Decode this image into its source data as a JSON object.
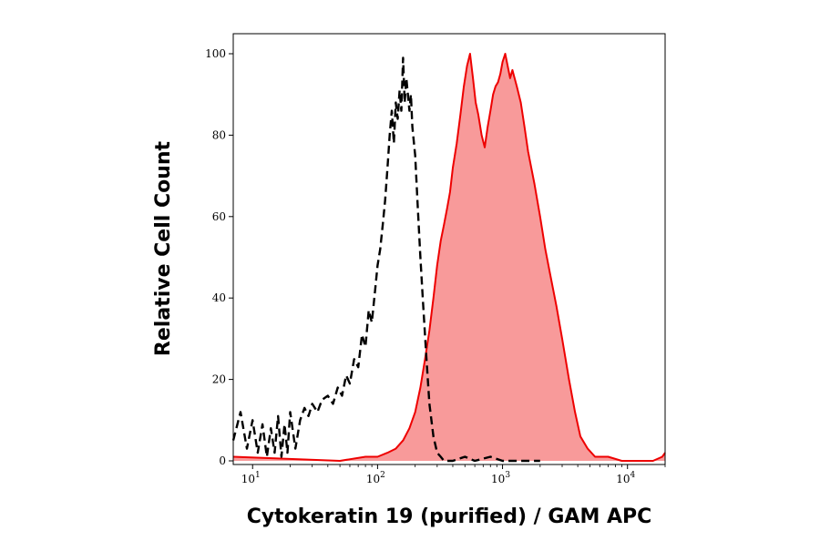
{
  "chart_data": {
    "type": "area",
    "xlabel": "Cytokeratin 19 (purified) / GAM APC",
    "ylabel": "Relative Cell Count",
    "x_scale": "log",
    "xlim": [
      7,
      20000
    ],
    "ylim": [
      0,
      100
    ],
    "y_ticks": [
      0,
      20,
      40,
      60,
      80,
      100
    ],
    "y_tick_labels": [
      "0",
      "20",
      "40",
      "60",
      "80",
      "100"
    ],
    "x_ticks": [
      {
        "value": 10,
        "base": "10",
        "exp": "1"
      },
      {
        "value": 100,
        "base": "10",
        "exp": "2"
      },
      {
        "value": 1000,
        "base": "10",
        "exp": "3"
      },
      {
        "value": 10000,
        "base": "10",
        "exp": "4"
      },
      {
        "value": 100000,
        "base": "10",
        "exp": "5"
      }
    ],
    "series": [
      {
        "style": "dashed",
        "color": "#000000",
        "fill": "none",
        "points": [
          [
            7,
            5
          ],
          [
            8,
            12
          ],
          [
            9,
            3
          ],
          [
            10,
            10
          ],
          [
            11,
            2
          ],
          [
            12,
            9
          ],
          [
            13,
            1
          ],
          [
            14,
            8
          ],
          [
            15,
            2
          ],
          [
            16,
            11
          ],
          [
            17,
            1
          ],
          [
            18,
            9
          ],
          [
            19,
            2
          ],
          [
            20,
            12
          ],
          [
            22,
            3
          ],
          [
            24,
            10
          ],
          [
            26,
            13
          ],
          [
            28,
            11
          ],
          [
            30,
            14
          ],
          [
            33,
            12
          ],
          [
            36,
            15
          ],
          [
            40,
            16
          ],
          [
            44,
            14
          ],
          [
            48,
            18
          ],
          [
            52,
            16
          ],
          [
            56,
            21
          ],
          [
            60,
            19
          ],
          [
            65,
            25
          ],
          [
            70,
            23
          ],
          [
            75,
            31
          ],
          [
            80,
            28
          ],
          [
            85,
            37
          ],
          [
            90,
            34
          ],
          [
            95,
            41
          ],
          [
            100,
            48
          ],
          [
            105,
            52
          ],
          [
            110,
            58
          ],
          [
            115,
            64
          ],
          [
            120,
            72
          ],
          [
            125,
            80
          ],
          [
            130,
            86
          ],
          [
            135,
            78
          ],
          [
            140,
            88
          ],
          [
            145,
            84
          ],
          [
            150,
            91
          ],
          [
            155,
            86
          ],
          [
            160,
            99
          ],
          [
            165,
            88
          ],
          [
            170,
            94
          ],
          [
            175,
            90
          ],
          [
            180,
            86
          ],
          [
            185,
            90
          ],
          [
            190,
            82
          ],
          [
            200,
            75
          ],
          [
            210,
            62
          ],
          [
            220,
            50
          ],
          [
            230,
            40
          ],
          [
            245,
            26
          ],
          [
            260,
            14
          ],
          [
            280,
            6
          ],
          [
            300,
            2
          ],
          [
            320,
            1
          ],
          [
            340,
            0
          ],
          [
            400,
            0
          ],
          [
            500,
            1
          ],
          [
            600,
            0
          ],
          [
            800,
            1
          ],
          [
            1000,
            0
          ],
          [
            1500,
            0
          ],
          [
            2000,
            0
          ]
        ]
      },
      {
        "style": "solid",
        "color": "#ee0000",
        "fill": "#f89a9a",
        "points": [
          [
            7,
            1
          ],
          [
            50,
            0
          ],
          [
            80,
            1
          ],
          [
            100,
            1
          ],
          [
            120,
            2
          ],
          [
            140,
            3
          ],
          [
            160,
            5
          ],
          [
            180,
            8
          ],
          [
            200,
            12
          ],
          [
            220,
            18
          ],
          [
            240,
            25
          ],
          [
            260,
            32
          ],
          [
            280,
            40
          ],
          [
            300,
            48
          ],
          [
            320,
            54
          ],
          [
            340,
            58
          ],
          [
            360,
            62
          ],
          [
            380,
            66
          ],
          [
            400,
            72
          ],
          [
            430,
            78
          ],
          [
            460,
            85
          ],
          [
            490,
            92
          ],
          [
            520,
            97
          ],
          [
            550,
            100
          ],
          [
            580,
            94
          ],
          [
            610,
            88
          ],
          [
            640,
            85
          ],
          [
            680,
            80
          ],
          [
            720,
            77
          ],
          [
            760,
            82
          ],
          [
            800,
            86
          ],
          [
            840,
            90
          ],
          [
            880,
            92
          ],
          [
            920,
            93
          ],
          [
            960,
            95
          ],
          [
            1000,
            98
          ],
          [
            1050,
            100
          ],
          [
            1100,
            97
          ],
          [
            1150,
            94
          ],
          [
            1200,
            96
          ],
          [
            1300,
            92
          ],
          [
            1400,
            88
          ],
          [
            1500,
            82
          ],
          [
            1600,
            76
          ],
          [
            1800,
            68
          ],
          [
            2000,
            60
          ],
          [
            2200,
            52
          ],
          [
            2400,
            46
          ],
          [
            2700,
            38
          ],
          [
            3000,
            30
          ],
          [
            3400,
            20
          ],
          [
            3800,
            12
          ],
          [
            4200,
            6
          ],
          [
            4800,
            3
          ],
          [
            5500,
            1
          ],
          [
            7000,
            1
          ],
          [
            9000,
            0
          ],
          [
            12000,
            0
          ],
          [
            16000,
            0
          ],
          [
            19000,
            1
          ],
          [
            20000,
            2
          ]
        ]
      }
    ]
  }
}
